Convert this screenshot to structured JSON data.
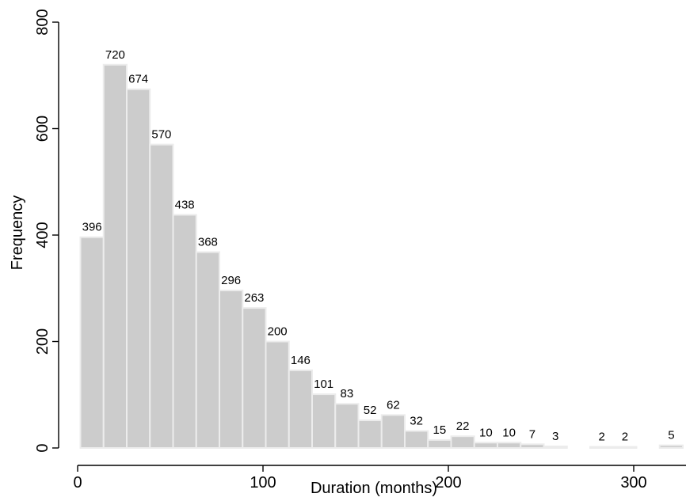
{
  "chart_data": {
    "type": "bar",
    "title": "",
    "xlabel": "Duration (months)",
    "ylabel": "Frequency",
    "xlim": [
      0,
      330
    ],
    "ylim": [
      0,
      800
    ],
    "xticks": [
      "0",
      "100",
      "200",
      "300"
    ],
    "yticks": [
      "0",
      "200",
      "400",
      "600",
      "800"
    ],
    "grid": false,
    "bin_width": 12.5,
    "bins": [
      {
        "start": 1.5,
        "value": 396
      },
      {
        "start": 14,
        "value": 720
      },
      {
        "start": 26.5,
        "value": 674
      },
      {
        "start": 39,
        "value": 570
      },
      {
        "start": 51.5,
        "value": 438
      },
      {
        "start": 64,
        "value": 368
      },
      {
        "start": 76.5,
        "value": 296
      },
      {
        "start": 89,
        "value": 263
      },
      {
        "start": 101.5,
        "value": 200
      },
      {
        "start": 114,
        "value": 146
      },
      {
        "start": 126.5,
        "value": 101
      },
      {
        "start": 139,
        "value": 83
      },
      {
        "start": 151.5,
        "value": 52
      },
      {
        "start": 164,
        "value": 62
      },
      {
        "start": 176.5,
        "value": 32
      },
      {
        "start": 189,
        "value": 15
      },
      {
        "start": 201.5,
        "value": 22
      },
      {
        "start": 214,
        "value": 10
      },
      {
        "start": 226.5,
        "value": 10
      },
      {
        "start": 239,
        "value": 7
      },
      {
        "start": 251.5,
        "value": 3
      },
      {
        "start": 276.5,
        "value": 2
      },
      {
        "start": 289,
        "value": 2
      },
      {
        "start": 314,
        "value": 5
      }
    ],
    "colors": {
      "bar_fill": "#cccccc",
      "bar_stroke": "#ececec",
      "axis": "#000000"
    }
  }
}
